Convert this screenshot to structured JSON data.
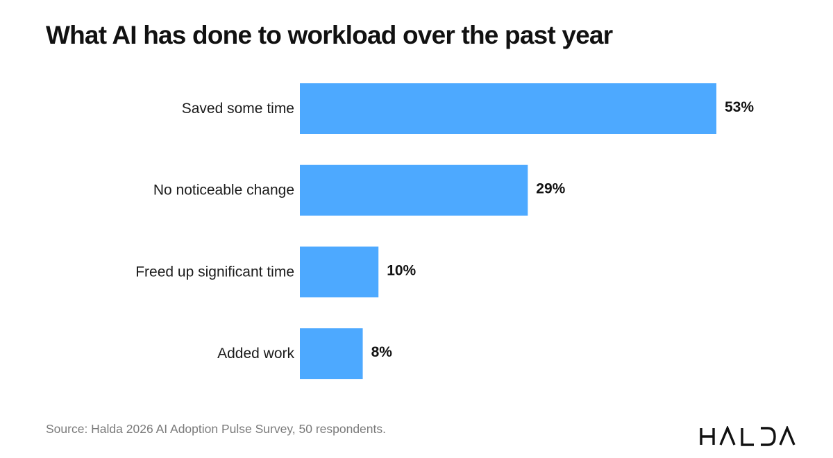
{
  "chart_data": {
    "type": "bar",
    "orientation": "horizontal",
    "title": "What AI has done to workload over the past year",
    "categories": [
      "Saved some time",
      "No noticeable change",
      "Freed up significant time",
      "Added work"
    ],
    "values": [
      53,
      29,
      10,
      8
    ],
    "value_labels": [
      "53%",
      "29%",
      "10%",
      "8%"
    ],
    "unit": "%",
    "xlim": [
      0,
      53
    ],
    "grid": false,
    "legend": "none",
    "bar_color": "#4DA9FF"
  },
  "footer": {
    "source": "Source: Halda 2026 AI Adoption Pulse Survey, 50 respondents.",
    "logo_text": "HALDA",
    "logo_icon": "halda-wordmark"
  }
}
